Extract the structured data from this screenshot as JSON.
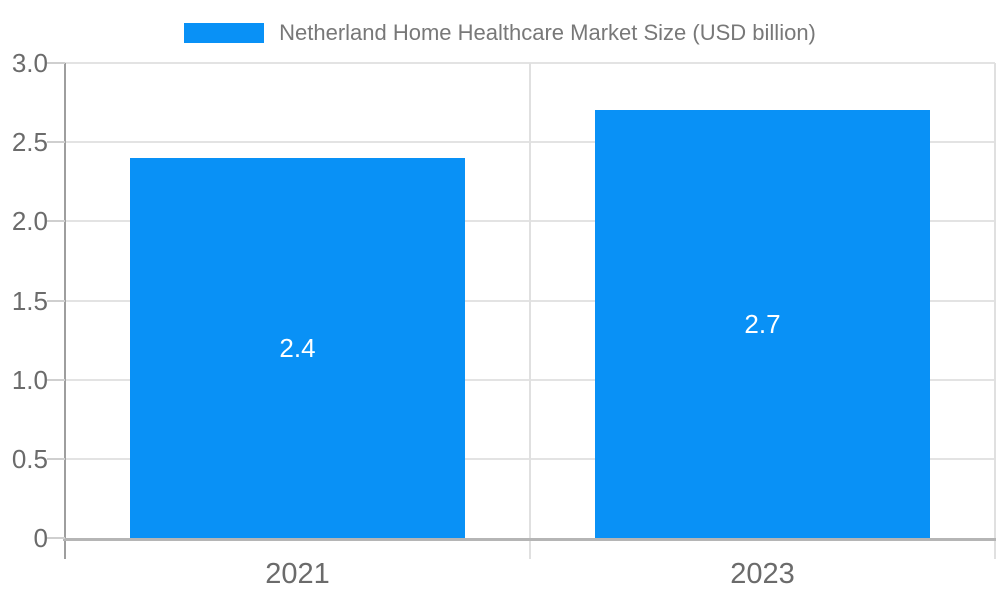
{
  "chart_data": {
    "type": "bar",
    "title": "Netherland Home Healthcare Market Size (USD billion)",
    "categories": [
      "2021",
      "2023"
    ],
    "series": [
      {
        "name": "Netherland Home Healthcare Market Size (USD billion)",
        "values": [
          2.4,
          2.7
        ]
      }
    ],
    "value_labels": [
      "2.4",
      "2.7"
    ],
    "xlabel": "",
    "ylabel": "",
    "ylim": [
      0,
      3.0
    ],
    "yticks": [
      0,
      0.5,
      1.0,
      1.5,
      2.0,
      2.5,
      3.0
    ],
    "ytick_labels": [
      "0",
      "0.5",
      "1.0",
      "1.5",
      "2.0",
      "2.5",
      "3.0"
    ],
    "grid": true,
    "legend_position": "top-center",
    "colors": {
      "bar": "#0991F6",
      "bar_label_text": "#ffffff",
      "axis_label_text": "#6b6b6b",
      "legend_text": "#787878",
      "gridline": "#e3e3e3",
      "boundary_line": "#e0e0e0",
      "axis_line": "#9e9e9e",
      "baseline": "#b5b5b5",
      "tick": "#cfcfcf",
      "background": "#ffffff"
    }
  }
}
